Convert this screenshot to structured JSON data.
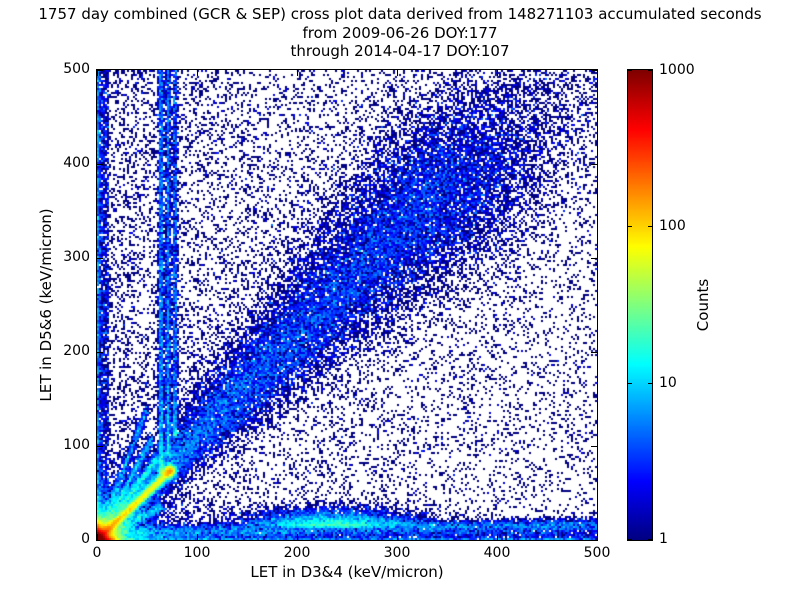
{
  "chart_data": {
    "type": "heatmap",
    "title_lines": [
      "1757 day combined (GCR & SEP) cross plot data derived from 148271103 accumulated seconds",
      "from 2009-06-26 DOY:177",
      "through 2014-04-17 DOY:107"
    ],
    "xlabel": "LET in D3&4 (keV/micron)",
    "ylabel": "LET in D5&6 (keV/micron)",
    "xlim": [
      0,
      500
    ],
    "ylim": [
      0,
      500
    ],
    "xticks": [
      0,
      100,
      200,
      300,
      400,
      500
    ],
    "yticks": [
      0,
      100,
      200,
      300,
      400,
      500
    ],
    "grid": false,
    "colorbar": {
      "label": "Counts",
      "scale": "log",
      "min": 1,
      "max": 1000,
      "ticks": [
        1,
        10,
        100,
        1000
      ],
      "colormap": "jet",
      "position": "right"
    },
    "features": [
      {
        "kind": "uniform_scatter",
        "n": 20000,
        "base_accept": 0.42,
        "x_bias_scale": 220,
        "note": "sparse single-count speckle everywhere, denser toward low LET"
      },
      {
        "kind": "edge_left",
        "n": 3200,
        "width": 12,
        "note": "dense blue column hugging x~0 for all y"
      },
      {
        "kind": "edge_bottom",
        "n": 2800,
        "height": 9,
        "note": "dense blue row hugging y~0 for all x"
      },
      {
        "kind": "core",
        "n": 22000,
        "mean": 4.5,
        "note": "very hot (~1000 counts, dark red) core at origin"
      },
      {
        "kind": "core_fan",
        "n": 9000,
        "r_mean": 26,
        "note": "yellow-green halo fanning out of the origin"
      },
      {
        "kind": "hot_diagonal",
        "n": 14000,
        "max": 75,
        "sigma": 2.2,
        "exp": 1.6,
        "note": "hot red-to-yellow y=x ridge from origin up to ~75 keV/micron"
      },
      {
        "kind": "diag_blob",
        "n": 1800,
        "x": 72,
        "y": 73,
        "sigma": 3.5,
        "note": "yellow clump terminating the hot ridge near (72,73)"
      },
      {
        "kind": "diag_band",
        "n": 26000,
        "max": 390,
        "slope": 1.09,
        "sigma0": 2.5,
        "sigma_k": 0.11,
        "exp": 0.75,
        "note": "broad blue coincidence band widening along diagonal up to ~(390,425)"
      },
      {
        "kind": "ray",
        "n": 1600,
        "slope": 1.45,
        "max_x": 60,
        "sigma": 1.6,
        "note": "faint steep streak from origin"
      },
      {
        "kind": "ray",
        "n": 1300,
        "slope": 1.95,
        "max_x": 55,
        "sigma": 1.6,
        "note": "faint steep streak from origin"
      },
      {
        "kind": "ray",
        "n": 1100,
        "slope": 2.8,
        "max_x": 50,
        "sigma": 1.6,
        "note": "faint steep streak from origin"
      },
      {
        "kind": "ray",
        "n": 1100,
        "slope": 0.55,
        "max_x": 65,
        "sigma": 1.6,
        "note": "shallow streak below the hot ridge"
      },
      {
        "kind": "vstreak",
        "n": 2600,
        "x": 64,
        "y0": 70,
        "y1": 500,
        "sigma": 1.4,
        "exp": 1.3,
        "note": "vertical blue streak at x~64"
      },
      {
        "kind": "vstreak",
        "n": 2100,
        "x": 71,
        "y0": 90,
        "y1": 500,
        "sigma": 1.4,
        "exp": 1.3,
        "note": "vertical blue streak at x~71"
      },
      {
        "kind": "vstreak",
        "n": 1700,
        "x": 78,
        "y0": 110,
        "y1": 500,
        "sigma": 1.4,
        "exp": 1.3,
        "note": "vertical blue streak at x~78"
      },
      {
        "kind": "hband",
        "n": 6500,
        "y": 8,
        "slope": 0.015,
        "sigma": 4,
        "note": "low horizontal band across full x range near y~10"
      },
      {
        "kind": "hblob",
        "n": 5000,
        "x": 235,
        "sx": 45,
        "y": 14,
        "sy": 9,
        "note": "denser clump on the horizontal band near x~200-280"
      },
      {
        "kind": "upper_cloud",
        "n": 3200,
        "u0": 290,
        "u1": 500,
        "slope": 1.06,
        "sigma": 45,
        "note": "diffuse scatter continuing the diagonal into the top-right corner"
      }
    ]
  }
}
